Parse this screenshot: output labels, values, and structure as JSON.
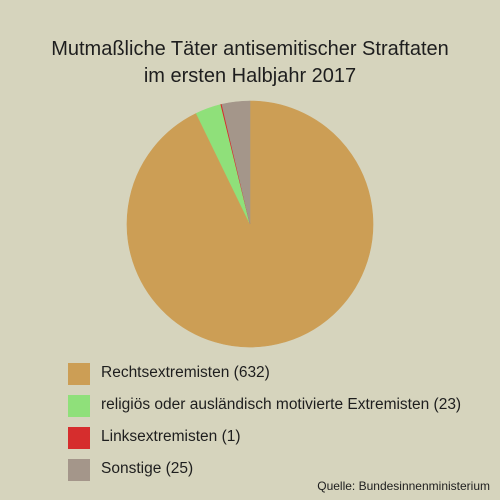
{
  "chart_data": {
    "type": "pie",
    "title_lines": [
      "Mutmaßliche Täter antisemitischer Straftaten",
      "im ersten Halbjahr 2017"
    ],
    "slices": [
      {
        "label": "Rechtsextremisten (632)",
        "value": 632,
        "color": "#cc9e55"
      },
      {
        "label": "religiös oder ausländisch motivierte Extremisten (23)",
        "value": 23,
        "color": "#8fe07a"
      },
      {
        "label": "Linksextremisten (1)",
        "value": 1,
        "color": "#d62d2d"
      },
      {
        "label": "Sonstige (25)",
        "value": 25,
        "color": "#a4968a"
      }
    ],
    "start_angle_deg": 0,
    "direction": "clockwise",
    "legend_placement": "bottom-left",
    "source": "Quelle: Bundesinnenministerium"
  }
}
